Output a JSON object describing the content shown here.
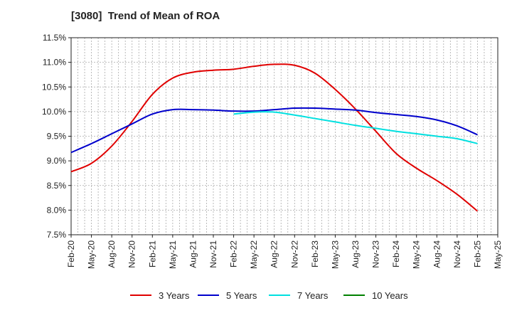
{
  "chart_data": {
    "type": "line",
    "title": "[3080]  Trend of Mean of ROA",
    "xlabel": "",
    "ylabel": "",
    "ylim": [
      7.5,
      11.5
    ],
    "yticks": [
      "7.5%",
      "8.0%",
      "8.5%",
      "9.0%",
      "9.5%",
      "10.0%",
      "10.5%",
      "11.0%",
      "11.5%"
    ],
    "ytick_values": [
      7.5,
      8.0,
      8.5,
      9.0,
      9.5,
      10.0,
      10.5,
      11.0,
      11.5
    ],
    "x_ticks": [
      "Feb-20",
      "May-20",
      "Aug-20",
      "Nov-20",
      "Feb-21",
      "May-21",
      "Aug-21",
      "Nov-21",
      "Feb-22",
      "May-22",
      "Aug-22",
      "Nov-22",
      "Feb-23",
      "May-23",
      "Aug-23",
      "Nov-23",
      "Feb-24",
      "May-24",
      "Aug-24",
      "Nov-24",
      "Feb-25",
      "May-25"
    ],
    "grid": true,
    "legend_position": "bottom",
    "series": [
      {
        "name": "3 Years",
        "color": "#e00000",
        "values": [
          8.78,
          8.95,
          9.3,
          9.8,
          10.35,
          10.68,
          10.8,
          10.84,
          10.86,
          10.92,
          10.96,
          10.94,
          10.78,
          10.45,
          10.05,
          9.6,
          9.15,
          8.85,
          8.6,
          8.32,
          7.98,
          null
        ]
      },
      {
        "name": "5 Years",
        "color": "#0000cc",
        "values": [
          9.17,
          9.35,
          9.55,
          9.75,
          9.95,
          10.04,
          10.04,
          10.03,
          10.01,
          10.01,
          10.04,
          10.07,
          10.07,
          10.05,
          10.03,
          9.98,
          9.94,
          9.9,
          9.83,
          9.71,
          9.53,
          null
        ]
      },
      {
        "name": "7 Years",
        "color": "#00e0e0",
        "values": [
          null,
          null,
          null,
          null,
          null,
          null,
          null,
          null,
          9.95,
          9.99,
          9.99,
          9.93,
          9.86,
          9.79,
          9.72,
          9.66,
          9.6,
          9.55,
          9.5,
          9.45,
          9.35,
          null
        ]
      },
      {
        "name": "10 Years",
        "color": "#008000",
        "values": [
          null,
          null,
          null,
          null,
          null,
          null,
          null,
          null,
          null,
          null,
          null,
          null,
          null,
          null,
          null,
          null,
          null,
          null,
          null,
          null,
          null,
          null
        ]
      }
    ]
  }
}
